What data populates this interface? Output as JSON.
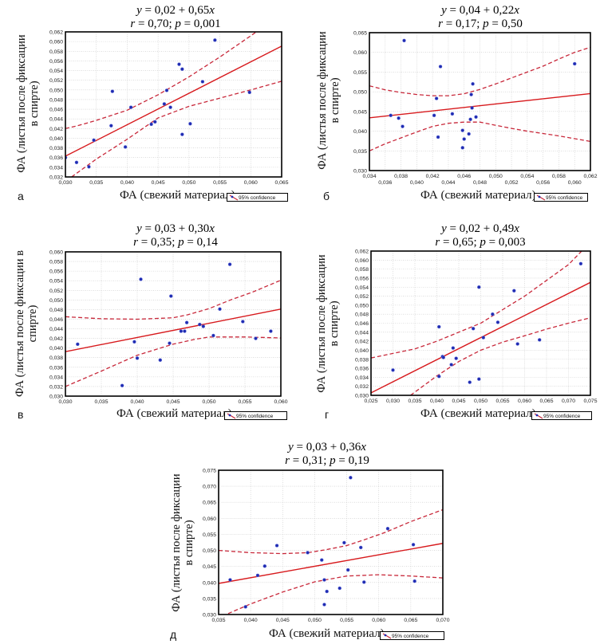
{
  "figure": {
    "colors": {
      "regression": "#d7191c",
      "confidence": "#c8283a",
      "points": "#1f2bb0",
      "grid": "#c8c8c8",
      "frame": "#000000"
    },
    "legend_label": "95% confidence"
  },
  "chart_data": [
    {
      "id": "a",
      "type": "scatter",
      "panel_letter": "а",
      "equation": {
        "prefix": "y",
        "body": " = 0,02 + 0,65",
        "var": "x"
      },
      "stats": {
        "r_label": "r",
        "r_value": " = 0,70; ",
        "p_label": "p",
        "p_value": " = 0,001"
      },
      "xlabel": "ФА (свежий материал)",
      "ylabel_lines": [
        "ФА (листья после фиксации",
        "в спирте)"
      ],
      "xlim": [
        0.03,
        0.065
      ],
      "ylim": [
        0.032,
        0.062
      ],
      "xticks": [
        "0,030",
        "0,035",
        "0,040",
        "0,045",
        "0,050",
        "0,055",
        "0,060",
        "0,065"
      ],
      "xtick_values": [
        0.03,
        0.035,
        0.04,
        0.045,
        0.05,
        0.055,
        0.06,
        0.065
      ],
      "yticks": [
        "0,032",
        "0,034",
        "0,036",
        "0,038",
        "0,040",
        "0,042",
        "0,044",
        "0,046",
        "0,048",
        "0,050",
        "0,052",
        "0,054",
        "0,056",
        "0,058",
        "0,060",
        "0,062"
      ],
      "ytick_values": [
        0.032,
        0.034,
        0.036,
        0.038,
        0.04,
        0.042,
        0.044,
        0.046,
        0.048,
        0.05,
        0.052,
        0.054,
        0.056,
        0.058,
        0.06,
        0.062
      ],
      "x_minor_grid": false,
      "grid": true,
      "legend": "bottom-right",
      "regression": {
        "intercept": 0.0168,
        "slope": 0.65
      },
      "ci_upper": [
        [
          0.03,
          0.042
        ],
        [
          0.032,
          0.0426
        ],
        [
          0.035,
          0.0437
        ],
        [
          0.04,
          0.0458
        ],
        [
          0.045,
          0.049
        ],
        [
          0.05,
          0.0527
        ],
        [
          0.055,
          0.0568
        ],
        [
          0.06,
          0.0612
        ],
        [
          0.062,
          0.063
        ]
      ],
      "ci_lower": [
        [
          0.031,
          0.032
        ],
        [
          0.035,
          0.0357
        ],
        [
          0.04,
          0.0398
        ],
        [
          0.045,
          0.0442
        ],
        [
          0.05,
          0.0466
        ],
        [
          0.055,
          0.0483
        ],
        [
          0.06,
          0.05
        ],
        [
          0.065,
          0.0518
        ]
      ],
      "points": [
        [
          0.03,
          0.036
        ],
        [
          0.0318,
          0.035
        ],
        [
          0.0338,
          0.0341
        ],
        [
          0.0346,
          0.0396
        ],
        [
          0.0374,
          0.0426
        ],
        [
          0.0376,
          0.0497
        ],
        [
          0.0397,
          0.0382
        ],
        [
          0.0406,
          0.0464
        ],
        [
          0.0439,
          0.0429
        ],
        [
          0.0445,
          0.0434
        ],
        [
          0.046,
          0.0471
        ],
        [
          0.0464,
          0.0499
        ],
        [
          0.047,
          0.0464
        ],
        [
          0.0484,
          0.0553
        ],
        [
          0.0489,
          0.0543
        ],
        [
          0.0489,
          0.0408
        ],
        [
          0.0502,
          0.043
        ],
        [
          0.0522,
          0.0517
        ],
        [
          0.0542,
          0.0603
        ],
        [
          0.0598,
          0.0495
        ]
      ]
    },
    {
      "id": "b",
      "type": "scatter",
      "panel_letter": "б",
      "equation": {
        "prefix": "y",
        "body": " = 0,04 + 0,22",
        "var": "x"
      },
      "stats": {
        "r_label": "r",
        "r_value": " = 0,17; ",
        "p_label": "p",
        "p_value": " = 0,50"
      },
      "xlabel": "ФА (свежий материал)",
      "ylabel_lines": [
        "ФА (листья после фиксации",
        "в спирте)"
      ],
      "xlim": [
        0.034,
        0.062
      ],
      "ylim": [
        0.03,
        0.065
      ],
      "xticks": [
        "0,034",
        "0,036",
        "0,038",
        "0,040",
        "0,042",
        "0,044",
        "0,046",
        "0,048",
        "0,050",
        "0,052",
        "0,054",
        "0,056",
        "0,058",
        "0,060",
        "0,062"
      ],
      "xtick_values": [
        0.034,
        0.036,
        0.038,
        0.04,
        0.042,
        0.044,
        0.046,
        0.048,
        0.05,
        0.052,
        0.054,
        0.056,
        0.058,
        0.06,
        0.062
      ],
      "yticks": [
        "0,030",
        "0,035",
        "0,040",
        "0,045",
        "0,050",
        "0,055",
        "0,060",
        "0,065"
      ],
      "ytick_values": [
        0.03,
        0.035,
        0.04,
        0.045,
        0.05,
        0.055,
        0.06,
        0.065
      ],
      "staggered_xticks": true,
      "grid": true,
      "legend": "bottom-right",
      "regression": {
        "intercept": 0.0359,
        "slope": 0.22
      },
      "ci_upper": [
        [
          0.034,
          0.0515
        ],
        [
          0.036,
          0.0505
        ],
        [
          0.038,
          0.0498
        ],
        [
          0.04,
          0.0493
        ],
        [
          0.042,
          0.049
        ],
        [
          0.044,
          0.049
        ],
        [
          0.046,
          0.0495
        ],
        [
          0.048,
          0.0506
        ],
        [
          0.05,
          0.052
        ],
        [
          0.052,
          0.0535
        ],
        [
          0.054,
          0.055
        ],
        [
          0.056,
          0.0565
        ],
        [
          0.058,
          0.0583
        ],
        [
          0.06,
          0.06
        ],
        [
          0.062,
          0.0613
        ]
      ],
      "ci_lower": [
        [
          0.034,
          0.035
        ],
        [
          0.036,
          0.0368
        ],
        [
          0.038,
          0.0383
        ],
        [
          0.04,
          0.0398
        ],
        [
          0.042,
          0.0412
        ],
        [
          0.044,
          0.042
        ],
        [
          0.046,
          0.0423
        ],
        [
          0.048,
          0.0423
        ],
        [
          0.05,
          0.0415
        ],
        [
          0.052,
          0.0407
        ],
        [
          0.054,
          0.04
        ],
        [
          0.056,
          0.0394
        ],
        [
          0.058,
          0.0388
        ],
        [
          0.06,
          0.0381
        ],
        [
          0.062,
          0.0374
        ]
      ],
      "points": [
        [
          0.0367,
          0.044
        ],
        [
          0.0377,
          0.0433
        ],
        [
          0.0382,
          0.0412
        ],
        [
          0.0384,
          0.063
        ],
        [
          0.0422,
          0.044
        ],
        [
          0.0425,
          0.0483
        ],
        [
          0.0427,
          0.0385
        ],
        [
          0.043,
          0.0564
        ],
        [
          0.0445,
          0.0444
        ],
        [
          0.0458,
          0.0402
        ],
        [
          0.0458,
          0.0358
        ],
        [
          0.046,
          0.038
        ],
        [
          0.0466,
          0.0393
        ],
        [
          0.0468,
          0.043
        ],
        [
          0.0469,
          0.0493
        ],
        [
          0.047,
          0.0459
        ],
        [
          0.0471,
          0.052
        ],
        [
          0.0475,
          0.0436
        ],
        [
          0.06,
          0.0571
        ]
      ]
    },
    {
      "id": "v",
      "type": "scatter",
      "panel_letter": "в",
      "equation": {
        "prefix": "y",
        "body": " = 0,03 + 0,30",
        "var": "x"
      },
      "stats": {
        "r_label": "r",
        "r_value": " = 0,35; ",
        "p_label": "p",
        "p_value": " = 0,14"
      },
      "xlabel": "ФА (свежий материал)",
      "ylabel_lines": [
        "ФА (листья после фиксации в",
        "спирте)"
      ],
      "xlim": [
        0.03,
        0.06
      ],
      "ylim": [
        0.03,
        0.06
      ],
      "xticks": [
        "0,030",
        "0,035",
        "0,040",
        "0,045",
        "0,050",
        "0,055",
        "0,060"
      ],
      "xtick_values": [
        0.03,
        0.035,
        0.04,
        0.045,
        0.05,
        0.055,
        0.06
      ],
      "yticks": [
        "0,030",
        "0,032",
        "0,034",
        "0,036",
        "0,038",
        "0,040",
        "0,042",
        "0,044",
        "0,046",
        "0,048",
        "0,050",
        "0,052",
        "0,054",
        "0,056",
        "0,058",
        "0,060"
      ],
      "ytick_values": [
        0.03,
        0.032,
        0.034,
        0.036,
        0.038,
        0.04,
        0.042,
        0.044,
        0.046,
        0.048,
        0.05,
        0.052,
        0.054,
        0.056,
        0.058,
        0.06
      ],
      "grid": true,
      "legend": "bottom-right",
      "regression": {
        "intercept": 0.0304,
        "slope": 0.295
      },
      "ci_upper": [
        [
          0.03,
          0.0465
        ],
        [
          0.035,
          0.0461
        ],
        [
          0.04,
          0.046
        ],
        [
          0.045,
          0.0463
        ],
        [
          0.047,
          0.0469
        ],
        [
          0.05,
          0.0482
        ],
        [
          0.053,
          0.05
        ],
        [
          0.056,
          0.0516
        ],
        [
          0.06,
          0.0541
        ]
      ],
      "ci_lower": [
        [
          0.03,
          0.032
        ],
        [
          0.035,
          0.0352
        ],
        [
          0.038,
          0.0372
        ],
        [
          0.04,
          0.0385
        ],
        [
          0.045,
          0.0408
        ],
        [
          0.048,
          0.0418
        ],
        [
          0.05,
          0.0423
        ],
        [
          0.055,
          0.0423
        ],
        [
          0.06,
          0.0421
        ]
      ],
      "points": [
        [
          0.0317,
          0.0408
        ],
        [
          0.0379,
          0.0322
        ],
        [
          0.0396,
          0.0413
        ],
        [
          0.04,
          0.0379
        ],
        [
          0.0405,
          0.0543
        ],
        [
          0.0432,
          0.0375
        ],
        [
          0.0445,
          0.041
        ],
        [
          0.0447,
          0.0508
        ],
        [
          0.0461,
          0.0435
        ],
        [
          0.0466,
          0.0435
        ],
        [
          0.0469,
          0.0453
        ],
        [
          0.0487,
          0.0449
        ],
        [
          0.0492,
          0.0445
        ],
        [
          0.0506,
          0.0426
        ],
        [
          0.0515,
          0.0481
        ],
        [
          0.0529,
          0.0574
        ],
        [
          0.0547,
          0.0455
        ],
        [
          0.0565,
          0.042
        ],
        [
          0.0586,
          0.0435
        ]
      ]
    },
    {
      "id": "g",
      "type": "scatter",
      "panel_letter": "г",
      "equation": {
        "prefix": "y",
        "body": " = 0,02 + 0,49",
        "var": "x"
      },
      "stats": {
        "r_label": "r",
        "r_value": " = 0,65; ",
        "p_label": "p",
        "p_value": " = 0,003"
      },
      "xlabel": "ФА (свежий материал)",
      "ylabel_lines": [
        "ФА (листья после фиксации",
        "в спирте)"
      ],
      "xlim": [
        0.025,
        0.075
      ],
      "ylim": [
        0.03,
        0.062
      ],
      "xticks": [
        "0,025",
        "0,030",
        "0,035",
        "0,040",
        "0,045",
        "0,050",
        "0,055",
        "0,060",
        "0,065",
        "0,070",
        "0,075"
      ],
      "xtick_values": [
        0.025,
        0.03,
        0.035,
        0.04,
        0.045,
        0.05,
        0.055,
        0.06,
        0.065,
        0.07,
        0.075
      ],
      "yticks": [
        "0,030",
        "0,032",
        "0,034",
        "0,036",
        "0,038",
        "0,040",
        "0,042",
        "0,044",
        "0,046",
        "0,048",
        "0,050",
        "0,052",
        "0,054",
        "0,056",
        "0,058",
        "0,060",
        "0,062"
      ],
      "ytick_values": [
        0.03,
        0.032,
        0.034,
        0.036,
        0.038,
        0.04,
        0.042,
        0.044,
        0.046,
        0.048,
        0.05,
        0.052,
        0.054,
        0.056,
        0.058,
        0.06,
        0.062
      ],
      "grid": true,
      "legend": "bottom-right",
      "regression": {
        "intercept": 0.0183,
        "slope": 0.49
      },
      "ci_upper": [
        [
          0.025,
          0.0383
        ],
        [
          0.03,
          0.0393
        ],
        [
          0.035,
          0.0403
        ],
        [
          0.04,
          0.042
        ],
        [
          0.045,
          0.044
        ],
        [
          0.05,
          0.046
        ],
        [
          0.055,
          0.049
        ],
        [
          0.06,
          0.052
        ],
        [
          0.065,
          0.0555
        ],
        [
          0.07,
          0.059
        ],
        [
          0.073,
          0.062
        ]
      ],
      "ci_lower": [
        [
          0.034,
          0.03
        ],
        [
          0.04,
          0.0343
        ],
        [
          0.045,
          0.0375
        ],
        [
          0.05,
          0.04
        ],
        [
          0.055,
          0.0418
        ],
        [
          0.06,
          0.0432
        ],
        [
          0.065,
          0.0447
        ],
        [
          0.07,
          0.046
        ],
        [
          0.075,
          0.0472
        ]
      ],
      "points": [
        [
          0.03,
          0.0356
        ],
        [
          0.0405,
          0.0342
        ],
        [
          0.0405,
          0.0452
        ],
        [
          0.0413,
          0.0386
        ],
        [
          0.0415,
          0.0384
        ],
        [
          0.0433,
          0.0368
        ],
        [
          0.0437,
          0.0405
        ],
        [
          0.0444,
          0.0382
        ],
        [
          0.0475,
          0.0329
        ],
        [
          0.0483,
          0.0448
        ],
        [
          0.0496,
          0.0336
        ],
        [
          0.0496,
          0.054
        ],
        [
          0.0506,
          0.0428
        ],
        [
          0.0527,
          0.048
        ],
        [
          0.0539,
          0.0462
        ],
        [
          0.0576,
          0.0532
        ],
        [
          0.0584,
          0.0414
        ],
        [
          0.0634,
          0.0423
        ],
        [
          0.0728,
          0.0592
        ]
      ]
    },
    {
      "id": "d",
      "type": "scatter",
      "panel_letter": "д",
      "equation": {
        "prefix": "y",
        "body": " = 0,03 + 0,36",
        "var": "x"
      },
      "stats": {
        "r_label": "r",
        "r_value": " = 0,31; ",
        "p_label": "p",
        "p_value": " = 0,19"
      },
      "xlabel": "ФА (свежий материал)",
      "ylabel_lines": [
        "ФА (листья после фиксации",
        "в спирте)"
      ],
      "xlim": [
        0.035,
        0.07
      ],
      "ylim": [
        0.03,
        0.075
      ],
      "xticks": [
        "0,035",
        "0,040",
        "0,045",
        "0,050",
        "0,055",
        "0,060",
        "0,065",
        "0,070"
      ],
      "xtick_values": [
        0.035,
        0.04,
        0.045,
        0.05,
        0.055,
        0.06,
        0.065,
        0.07
      ],
      "yticks": [
        "0,030",
        "0,035",
        "0,040",
        "0,045",
        "0,050",
        "0,055",
        "0,060",
        "0,065",
        "0,070",
        "0,075"
      ],
      "ytick_values": [
        0.03,
        0.035,
        0.04,
        0.045,
        0.05,
        0.055,
        0.06,
        0.065,
        0.07,
        0.075
      ],
      "grid": true,
      "legend": "bottom-right",
      "regression": {
        "intercept": 0.0272,
        "slope": 0.357
      },
      "ci_upper": [
        [
          0.035,
          0.05
        ],
        [
          0.04,
          0.0493
        ],
        [
          0.045,
          0.049
        ],
        [
          0.049,
          0.0493
        ],
        [
          0.052,
          0.0503
        ],
        [
          0.055,
          0.0515
        ],
        [
          0.058,
          0.0535
        ],
        [
          0.061,
          0.0556
        ],
        [
          0.065,
          0.059
        ],
        [
          0.07,
          0.0627
        ]
      ],
      "ci_lower": [
        [
          0.0365,
          0.0303
        ],
        [
          0.04,
          0.0333
        ],
        [
          0.045,
          0.037
        ],
        [
          0.05,
          0.0402
        ],
        [
          0.055,
          0.042
        ],
        [
          0.06,
          0.0424
        ],
        [
          0.065,
          0.042
        ],
        [
          0.07,
          0.0414
        ]
      ],
      "points": [
        [
          0.0368,
          0.0408
        ],
        [
          0.0392,
          0.0324
        ],
        [
          0.0411,
          0.0422
        ],
        [
          0.0422,
          0.0451
        ],
        [
          0.0441,
          0.0515
        ],
        [
          0.0489,
          0.0493
        ],
        [
          0.0511,
          0.047
        ],
        [
          0.0515,
          0.0408
        ],
        [
          0.0515,
          0.0331
        ],
        [
          0.0519,
          0.0372
        ],
        [
          0.0539,
          0.0382
        ],
        [
          0.0546,
          0.0524
        ],
        [
          0.0552,
          0.0439
        ],
        [
          0.0556,
          0.0727
        ],
        [
          0.0572,
          0.0509
        ],
        [
          0.0577,
          0.0401
        ],
        [
          0.0614,
          0.0568
        ],
        [
          0.0654,
          0.0518
        ],
        [
          0.0656,
          0.0404
        ]
      ]
    }
  ]
}
